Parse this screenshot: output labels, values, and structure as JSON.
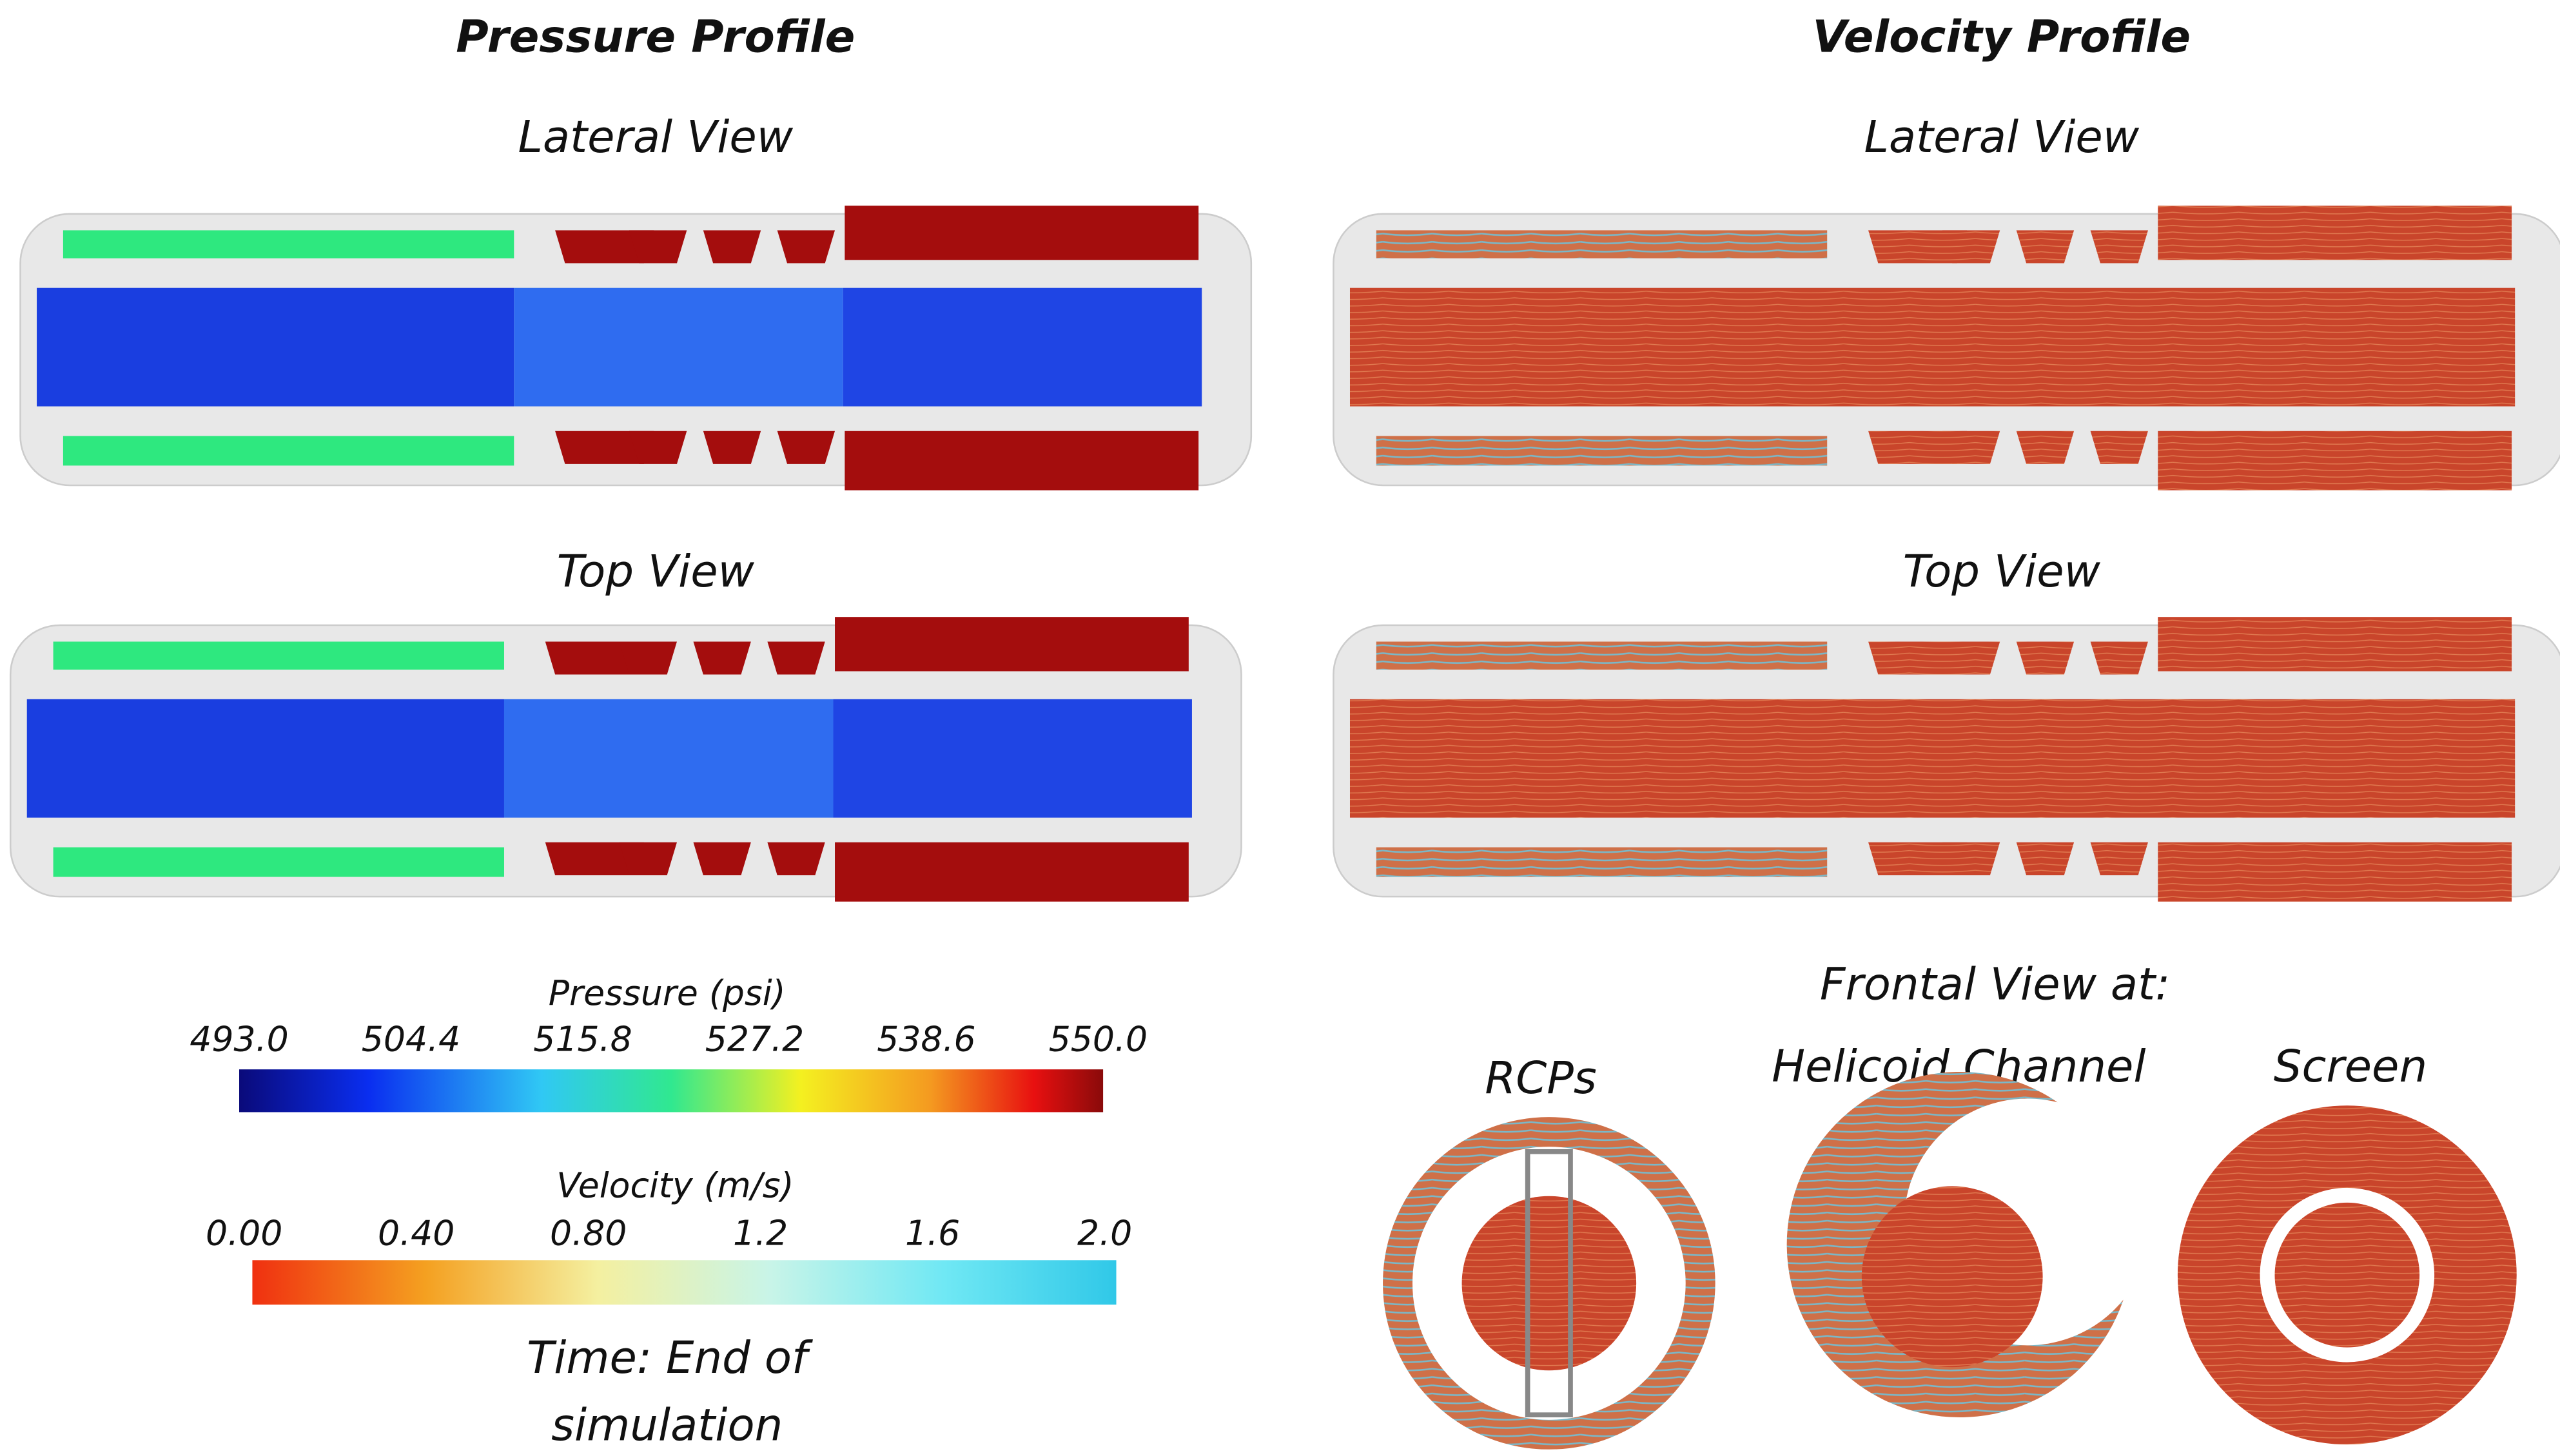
{
  "header": {
    "left_title": "Pressure Profile",
    "right_title": "Velocity Profile"
  },
  "left_panel": {
    "lateral_label": "Lateral View",
    "top_label": "Top View"
  },
  "right_panel": {
    "lateral_label": "Lateral View",
    "top_label": "Top View",
    "frontal": {
      "title": "Frontal View at:",
      "views": [
        "RCPs",
        "Helicoid Channel",
        "Screen"
      ]
    }
  },
  "legend": {
    "pressure": {
      "title": "Pressure (psi)",
      "ticks": [
        "493.0",
        "504.4",
        "515.8",
        "527.2",
        "538.6",
        "550.0"
      ]
    },
    "velocity": {
      "title": "Velocity (m/s)",
      "ticks": [
        "0.00",
        "0.40",
        "0.80",
        "1.2",
        "1.6",
        "2.0"
      ]
    },
    "time": [
      "Time: End of",
      "simulation"
    ]
  }
}
